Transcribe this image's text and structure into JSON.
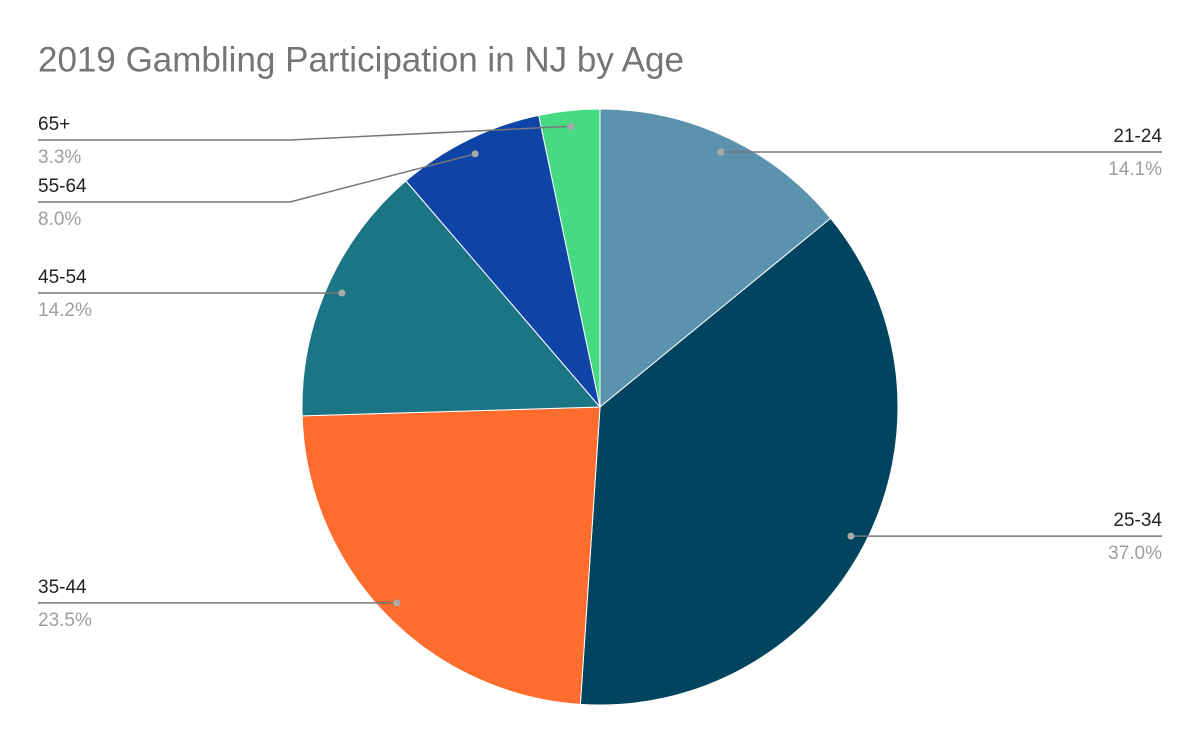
{
  "chart_data": {
    "type": "pie",
    "title": "2019 Gambling Participation in NJ by Age",
    "categories": [
      "21-24",
      "25-34",
      "35-44",
      "45-54",
      "55-64",
      "65+"
    ],
    "values": [
      14.1,
      37.0,
      23.5,
      14.2,
      8.0,
      3.3
    ],
    "value_labels": [
      "14.1%",
      "37.0%",
      "23.5%",
      "14.2%",
      "8.0%",
      "3.3%"
    ],
    "colors": [
      "#5b92ae",
      "#01445f",
      "#ff6d2e",
      "#1c7584",
      "#0e44a6",
      "#48d983"
    ]
  }
}
